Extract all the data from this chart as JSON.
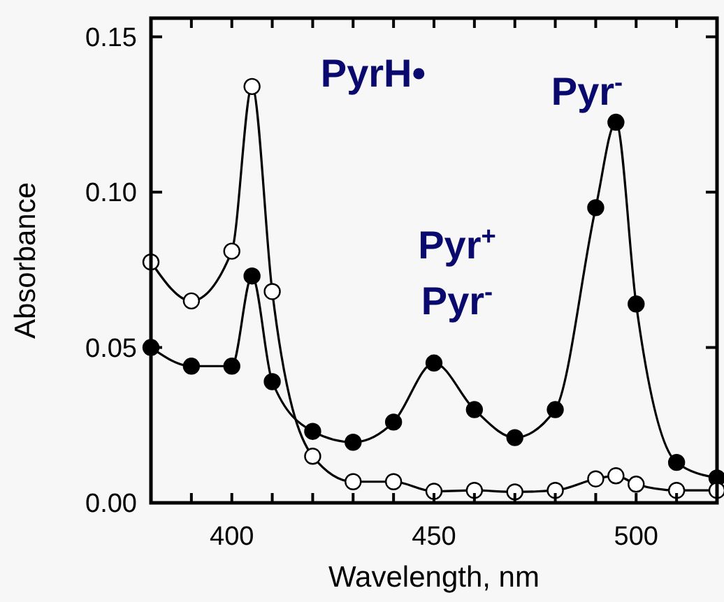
{
  "chart_data": {
    "type": "line",
    "xlabel": "Wavelength, nm",
    "ylabel": "Absorbance",
    "xlim": [
      380,
      520
    ],
    "ylim": [
      0,
      0.156
    ],
    "xticks": [
      {
        "value": 380,
        "label": null
      },
      {
        "value": 390,
        "label": null
      },
      400,
      {
        "value": 410,
        "label": null
      },
      {
        "value": 420,
        "label": null
      },
      {
        "value": 430,
        "label": null
      },
      {
        "value": 440,
        "label": null
      },
      450,
      {
        "value": 460,
        "label": null
      },
      {
        "value": 470,
        "label": null
      },
      {
        "value": 480,
        "label": null
      },
      {
        "value": 490,
        "label": null
      },
      500,
      {
        "value": 510,
        "label": null
      },
      {
        "value": 520,
        "label": null
      }
    ],
    "yticks": [
      {
        "value": 0,
        "label": "0.00"
      },
      0.05,
      {
        "value": 0.1,
        "label": "0.10"
      },
      0.15
    ],
    "x": [
      380,
      390,
      400,
      405,
      410,
      420,
      430,
      440,
      450,
      460,
      470,
      480,
      490,
      495,
      500,
      510,
      520
    ],
    "marker": "circle",
    "grid": false,
    "series": [
      {
        "color": "#000000",
        "values": [
          0.05,
          0.044,
          0.044,
          0.073,
          0.039,
          0.023,
          0.0195,
          0.026,
          0.045,
          0.03,
          0.021,
          0.03,
          0.095,
          0.1225,
          0.064,
          0.013,
          0.008
        ]
      },
      {
        "color": "#ffffff",
        "values": [
          0.0775,
          0.065,
          0.081,
          0.134,
          0.068,
          0.015,
          0.0068,
          0.0068,
          0.0037,
          0.004,
          0.0035,
          0.004,
          0.0077,
          0.0087,
          0.006,
          0.004,
          0.004
        ]
      }
    ],
    "annotations": [
      "PyrH•",
      "Pyr$^{+}$",
      "Pyr$^{-}$",
      "Pyr$^{-}$"
    ]
  }
}
